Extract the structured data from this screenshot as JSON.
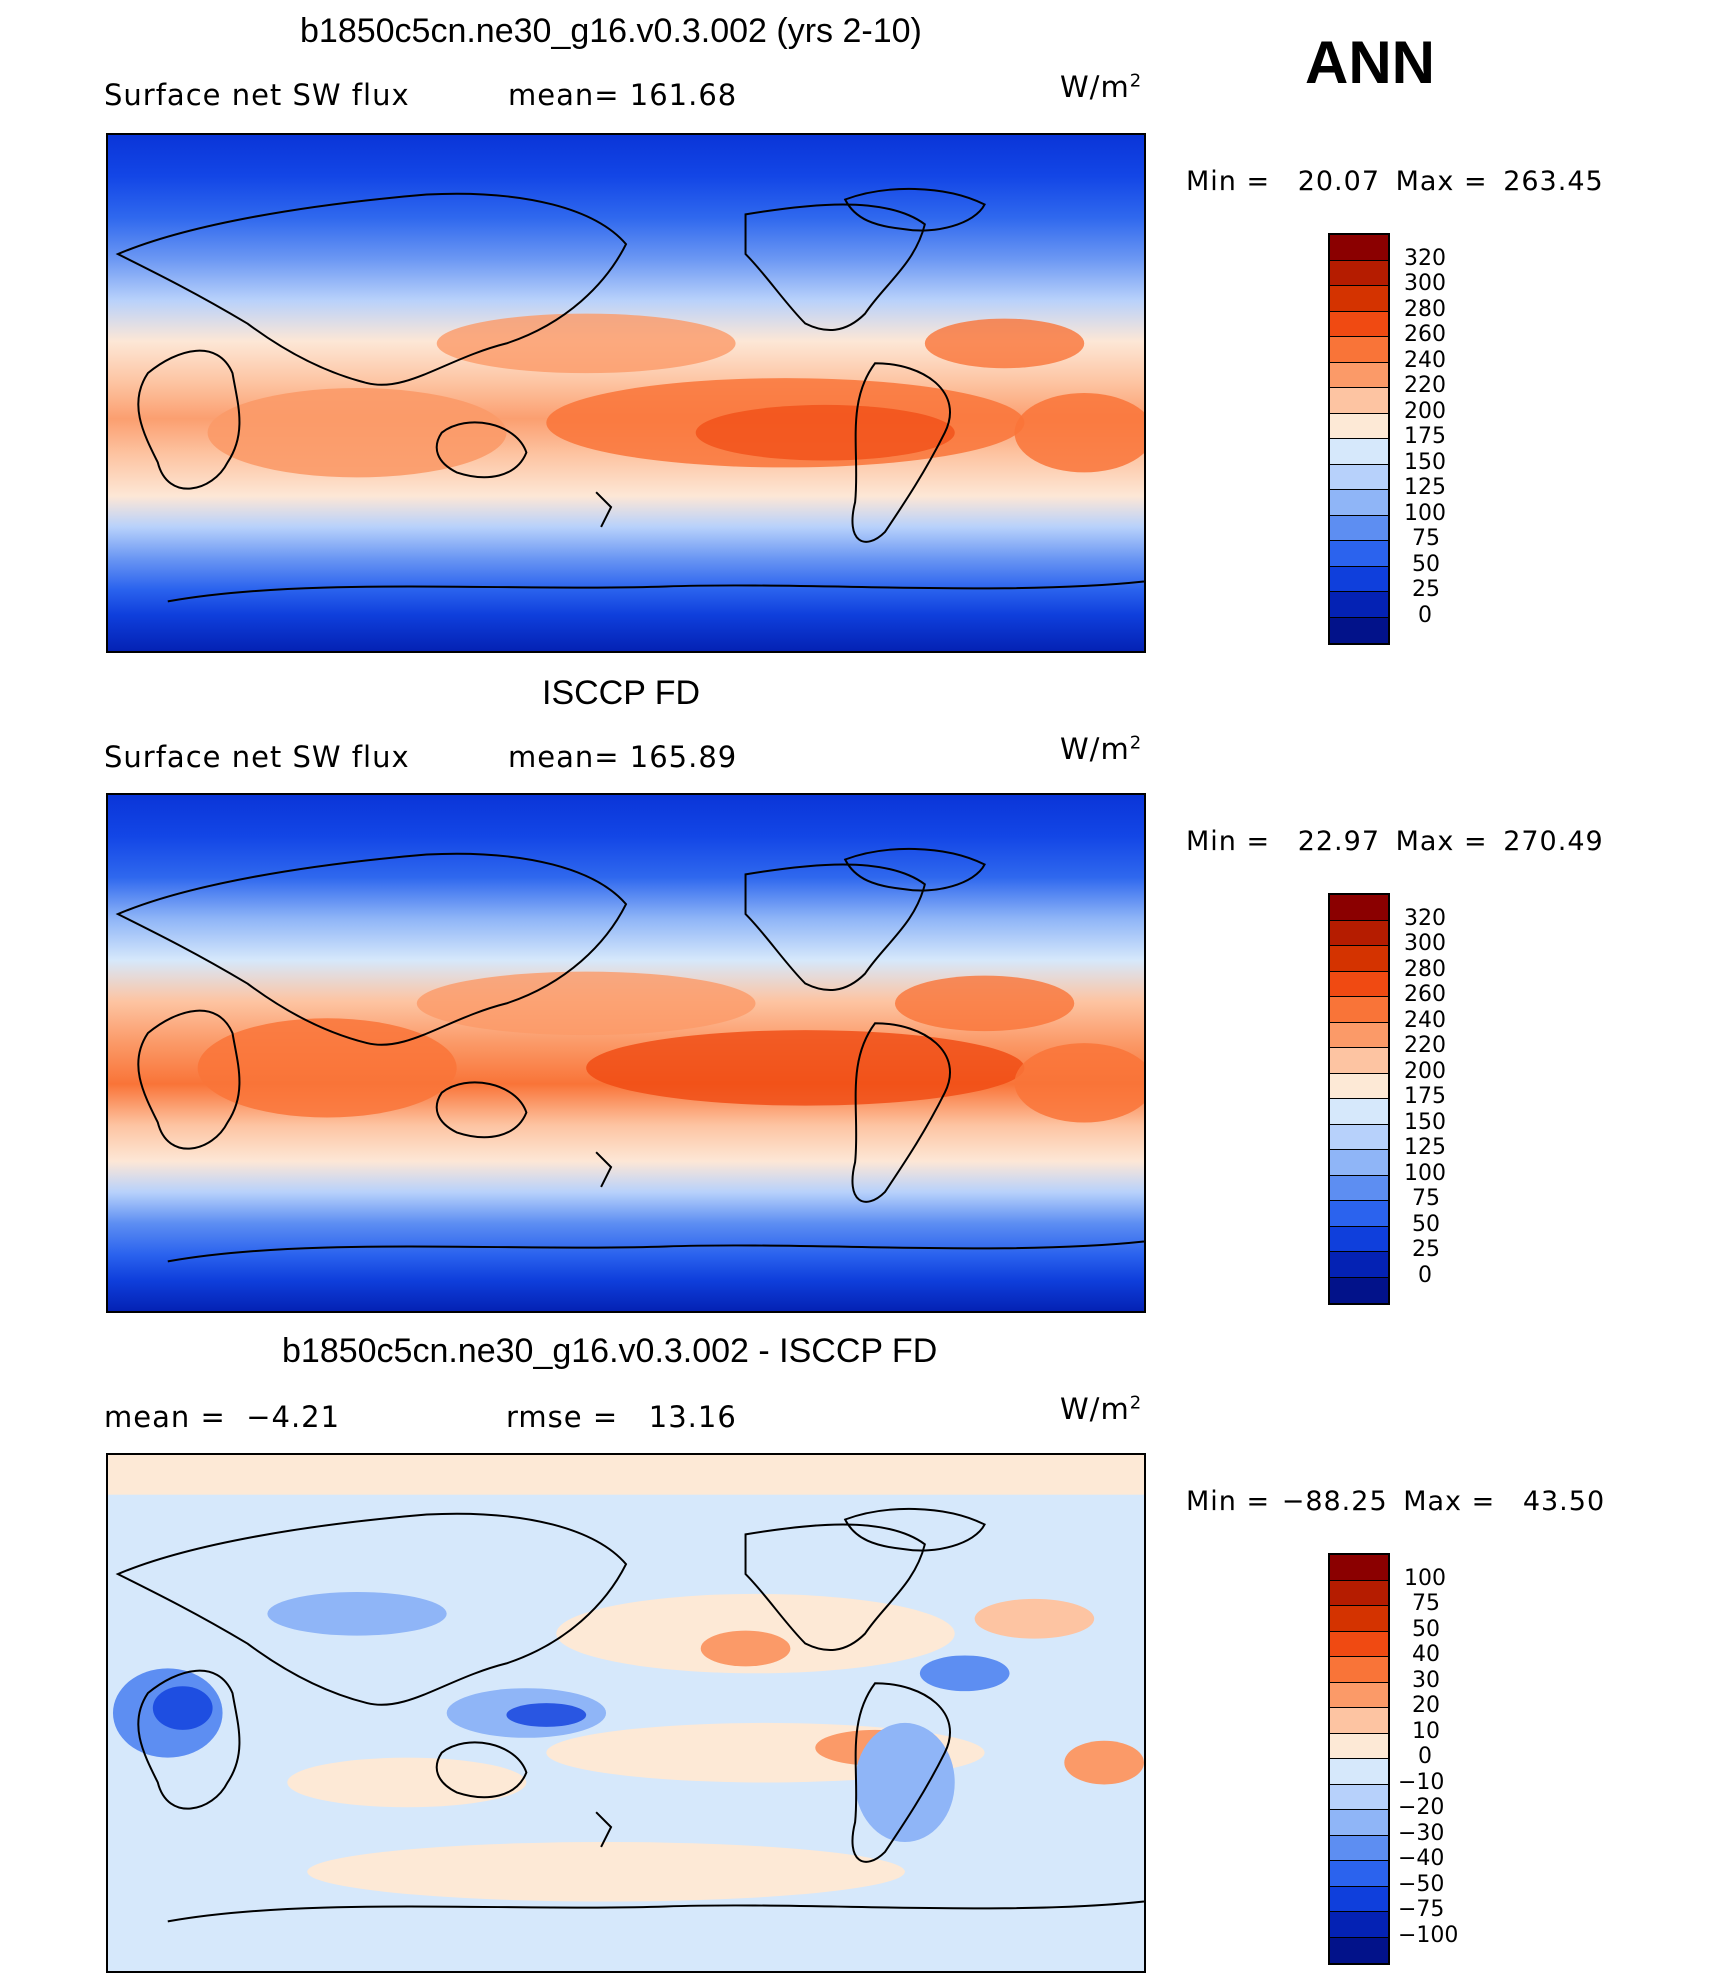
{
  "season": "ANN",
  "units": "W/m",
  "units_sup": "2",
  "panels": [
    {
      "title": "b1850c5cn.ne30_g16.v0.3.002 (yrs 2-10)",
      "left_label": "Surface net SW flux",
      "right_label": "mean= 161.68",
      "min_label": "Min = ",
      "min_value": "20.07",
      "max_label": "Max = ",
      "max_value": "263.45"
    },
    {
      "title": "ISCCP FD",
      "left_label": "Surface net SW flux",
      "right_label": "mean= 165.89",
      "min_label": "Min = ",
      "min_value": "22.97",
      "max_label": "Max = ",
      "max_value": "270.49"
    },
    {
      "title": "b1850c5cn.ne30_g16.v0.3.002 - ISCCP FD",
      "left_label": "mean =  −4.21",
      "right_label": "rmse =   13.16",
      "min_label": "Min = ",
      "min_value": "−88.25",
      "max_label": "Max = ",
      "max_value": "43.50"
    }
  ],
  "colorbars": {
    "flux": {
      "levels": [
        "320",
        "300",
        "280",
        "260",
        "240",
        "220",
        "200",
        "175",
        "150",
        "125",
        "100",
        "75",
        "50",
        "25",
        "0"
      ],
      "colors": [
        "#8b0000",
        "#b51c00",
        "#d43300",
        "#f04a12",
        "#f97438",
        "#fb9a68",
        "#fdc4a2",
        "#fde9d6",
        "#d6e8fb",
        "#b7d1fb",
        "#8fb5f7",
        "#5d8ef2",
        "#2b63ee",
        "#0f3fdc",
        "#0422b4",
        "#02128a"
      ]
    },
    "diff": {
      "levels": [
        "100",
        "75",
        "50",
        "40",
        "30",
        "20",
        "10",
        "0",
        "−10",
        "−20",
        "−30",
        "−40",
        "−50",
        "−75",
        "−100"
      ],
      "colors": [
        "#8b0000",
        "#b51c00",
        "#d43300",
        "#f04a12",
        "#f97438",
        "#fb9a68",
        "#fdc4a2",
        "#fde9d6",
        "#d6e8fb",
        "#b7d1fb",
        "#8fb5f7",
        "#5d8ef2",
        "#2b63ee",
        "#0f3fdc",
        "#0422b4",
        "#02128a"
      ]
    }
  }
}
